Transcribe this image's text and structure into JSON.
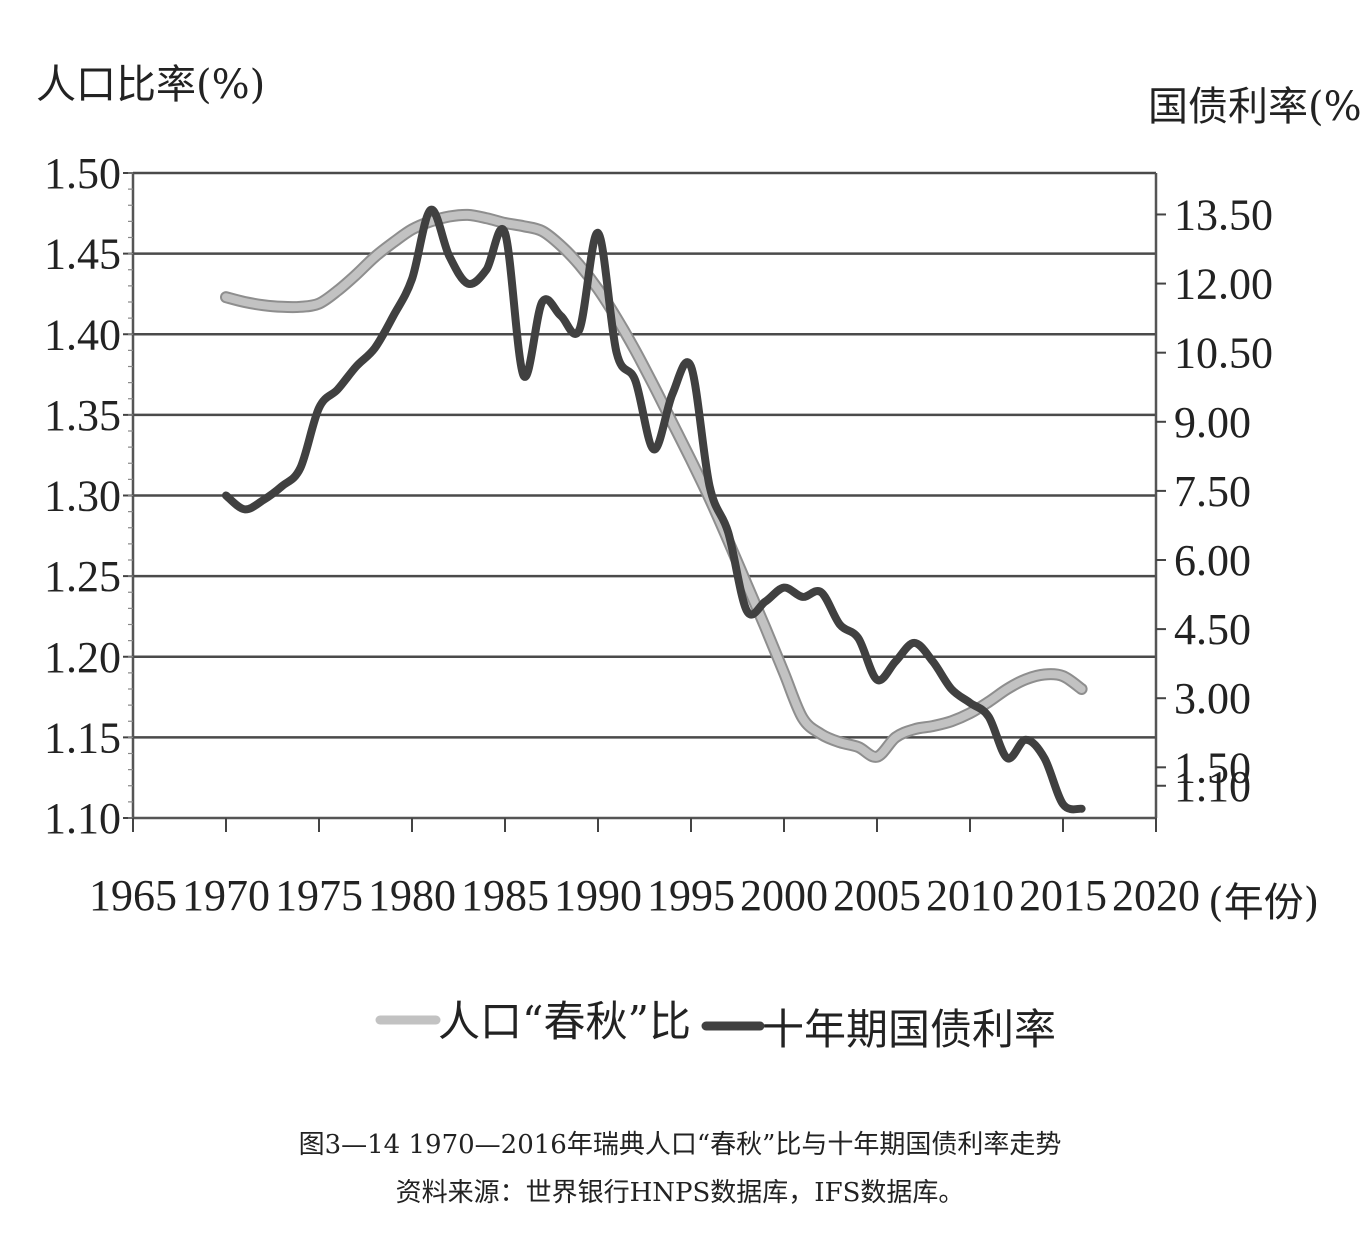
{
  "chart_data": {
    "type": "line",
    "ylabel_left": "人口比率(%)",
    "ylabel_right": "国债利率(%)",
    "xlabel": "(年份)",
    "xlim": [
      1965,
      2020
    ],
    "x_ticks": [
      "1965",
      "1970",
      "1975",
      "1980",
      "1985",
      "1990",
      "1995",
      "2000",
      "2005",
      "2010",
      "2015",
      "2020"
    ],
    "ylim_left": [
      1.1,
      1.5
    ],
    "y_ticks_left": [
      "1.10",
      "1.15",
      "1.20",
      "1.25",
      "1.30",
      "1.35",
      "1.40",
      "1.45",
      "1.50"
    ],
    "ylim_right": [
      0.4,
      14.4
    ],
    "y_ticks_right": [
      "1.10",
      "1.50",
      "3.00",
      "4.50",
      "6.00",
      "7.50",
      "9.00",
      "10.50",
      "12.00",
      "13.50"
    ],
    "grid": true,
    "legend_position": "bottom",
    "series": [
      {
        "name": "人口“春秋”比",
        "axis": "left",
        "color": "#c2c2c2",
        "x": [
          1970,
          1971,
          1972,
          1973,
          1974,
          1975,
          1976,
          1977,
          1978,
          1979,
          1980,
          1981,
          1982,
          1983,
          1984,
          1985,
          1986,
          1987,
          1988,
          1989,
          1990,
          1991,
          1992,
          1993,
          1994,
          1995,
          1996,
          1997,
          1998,
          1999,
          2000,
          2001,
          2002,
          2003,
          2004,
          2005,
          2006,
          2007,
          2008,
          2009,
          2010,
          2011,
          2012,
          2013,
          2014,
          2015,
          2016
        ],
        "values": [
          1.423,
          1.42,
          1.418,
          1.417,
          1.417,
          1.419,
          1.427,
          1.437,
          1.448,
          1.457,
          1.465,
          1.47,
          1.473,
          1.474,
          1.472,
          1.469,
          1.467,
          1.464,
          1.455,
          1.443,
          1.428,
          1.41,
          1.39,
          1.368,
          1.345,
          1.322,
          1.298,
          1.272,
          1.245,
          1.218,
          1.19,
          1.162,
          1.152,
          1.147,
          1.144,
          1.138,
          1.15,
          1.155,
          1.157,
          1.16,
          1.165,
          1.172,
          1.18,
          1.186,
          1.189,
          1.188,
          1.18
        ]
      },
      {
        "name": "十年期国债利率",
        "axis": "right",
        "color": "#404040",
        "x": [
          1970,
          1971,
          1972,
          1973,
          1974,
          1975,
          1976,
          1977,
          1978,
          1979,
          1980,
          1981,
          1982,
          1983,
          1984,
          1985,
          1986,
          1987,
          1988,
          1989,
          1990,
          1991,
          1992,
          1993,
          1994,
          1995,
          1996,
          1997,
          1998,
          1999,
          2000,
          2001,
          2002,
          2003,
          2004,
          2005,
          2006,
          2007,
          2008,
          2009,
          2010,
          2011,
          2012,
          2013,
          2014,
          2015,
          2016
        ],
        "values": [
          7.4,
          7.1,
          7.3,
          7.6,
          8.0,
          9.3,
          9.7,
          10.2,
          10.6,
          11.3,
          12.1,
          13.6,
          12.6,
          12.0,
          12.3,
          13.1,
          10.0,
          11.6,
          11.3,
          11.0,
          13.1,
          10.5,
          9.9,
          8.4,
          9.6,
          10.2,
          7.6,
          6.6,
          4.9,
          5.1,
          5.4,
          5.2,
          5.3,
          4.6,
          4.3,
          3.4,
          3.8,
          4.2,
          3.8,
          3.2,
          2.9,
          2.6,
          1.7,
          2.1,
          1.7,
          0.7,
          0.6
        ]
      }
    ]
  },
  "caption": {
    "title": "图3—14 1970—2016年瑞典人口“春秋”比与十年期国债利率走势",
    "source": "资料来源：世界银行HNPS数据库，IFS数据库。"
  }
}
